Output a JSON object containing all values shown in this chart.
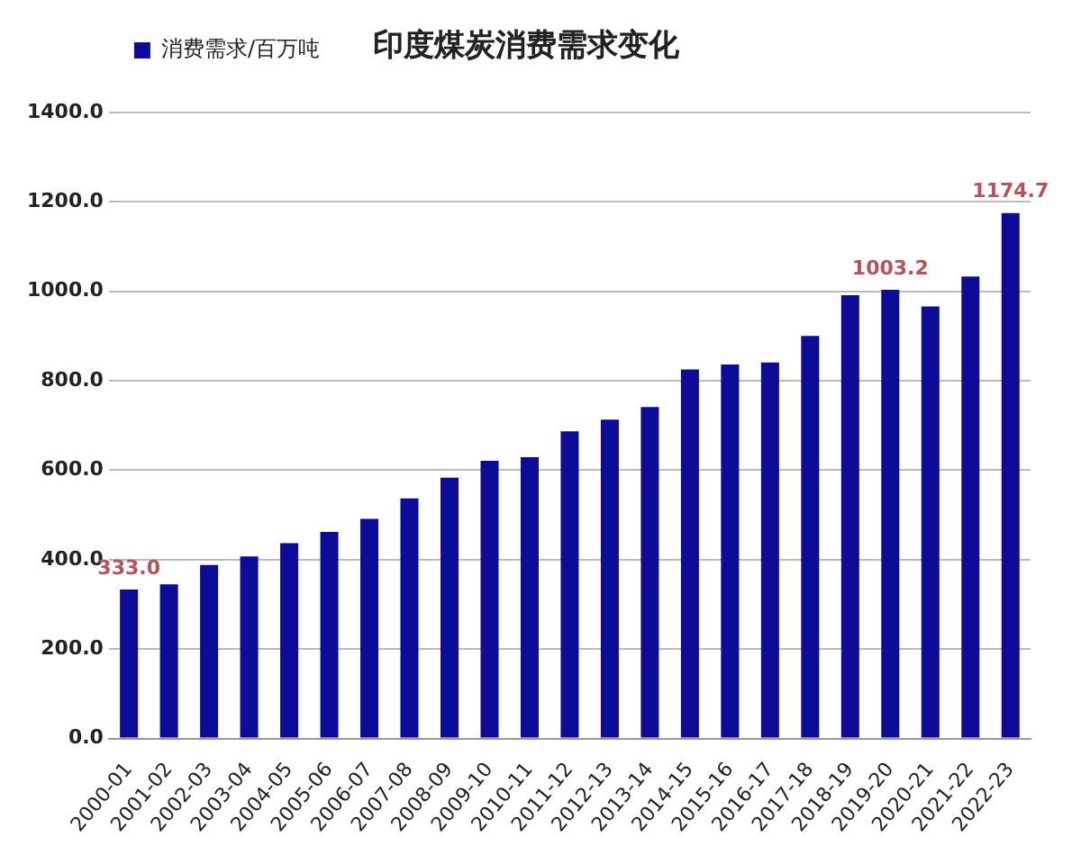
{
  "chart_data": {
    "type": "bar",
    "title": "印度煤炭消费需求变化",
    "categories": [
      "2000-01",
      "2001-02",
      "2002-03",
      "2003-04",
      "2004-05",
      "2005-06",
      "2006-07",
      "2007-08",
      "2008-09",
      "2009-10",
      "2010-11",
      "2011-12",
      "2012-13",
      "2013-14",
      "2014-15",
      "2015-16",
      "2016-17",
      "2017-18",
      "2018-19",
      "2019-20",
      "2020-21",
      "2021-22",
      "2022-23"
    ],
    "series": [
      {
        "name": "消费需求/百万吨",
        "color": "#0c0c99",
        "values": [
          333.0,
          345,
          388,
          407,
          437,
          462,
          491,
          537,
          583,
          621,
          629,
          687,
          713,
          741,
          825,
          836,
          841,
          900,
          991,
          1003.2,
          966,
          1033,
          1174.7
        ],
        "value_labels": [
          "333.0",
          null,
          null,
          null,
          null,
          null,
          null,
          null,
          null,
          null,
          null,
          null,
          null,
          null,
          null,
          null,
          null,
          null,
          null,
          "1003.2",
          null,
          null,
          "1174.7"
        ]
      }
    ],
    "ylim": [
      0,
      1400
    ],
    "yticks": [
      {
        "value": 0,
        "label": "0.0"
      },
      {
        "value": 200,
        "label": "200.0"
      },
      {
        "value": 400,
        "label": "400.0"
      },
      {
        "value": 600,
        "label": "600.0"
      },
      {
        "value": 800,
        "label": "800.0"
      },
      {
        "value": 1000,
        "label": "1000.0"
      },
      {
        "value": 1200,
        "label": "1200.0"
      },
      {
        "value": 1400,
        "label": "1400.0"
      }
    ],
    "grid": "y",
    "legend": "top left"
  }
}
